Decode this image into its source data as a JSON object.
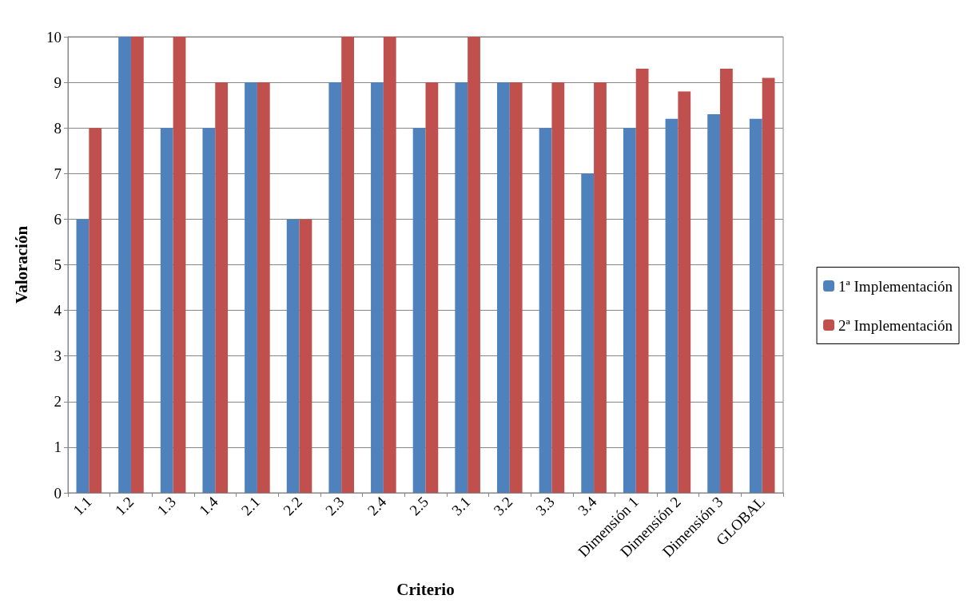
{
  "chart_data": {
    "type": "bar",
    "xlabel": "Criterio",
    "ylabel": "Valoración",
    "categories": [
      "1.1",
      "1.2",
      "1.3",
      "1.4",
      "2.1",
      "2.2",
      "2.3",
      "2.4",
      "2.5",
      "3.1",
      "3.2",
      "3.3",
      "3.4",
      "Dimensión 1",
      "Dimensión 2",
      "Dimensión 3",
      "GLOBAL"
    ],
    "series": [
      {
        "name": "1ª Implementación",
        "color": "#4f81bd",
        "values": [
          6,
          10,
          8,
          8,
          9,
          6,
          9,
          9,
          8,
          9,
          9,
          8,
          7,
          8,
          8.2,
          8.3,
          8.2
        ]
      },
      {
        "name": "2ª Implementación",
        "color": "#c0504d",
        "values": [
          8,
          10,
          10,
          9,
          9,
          6,
          10,
          10,
          9,
          10,
          9,
          9,
          9,
          9.3,
          8.8,
          9.3,
          9.1
        ]
      }
    ],
    "ylim": [
      0,
      10
    ],
    "yticks": [
      0,
      1,
      2,
      3,
      4,
      5,
      6,
      7,
      8,
      9,
      10
    ],
    "grid": "y",
    "legend": "right"
  }
}
